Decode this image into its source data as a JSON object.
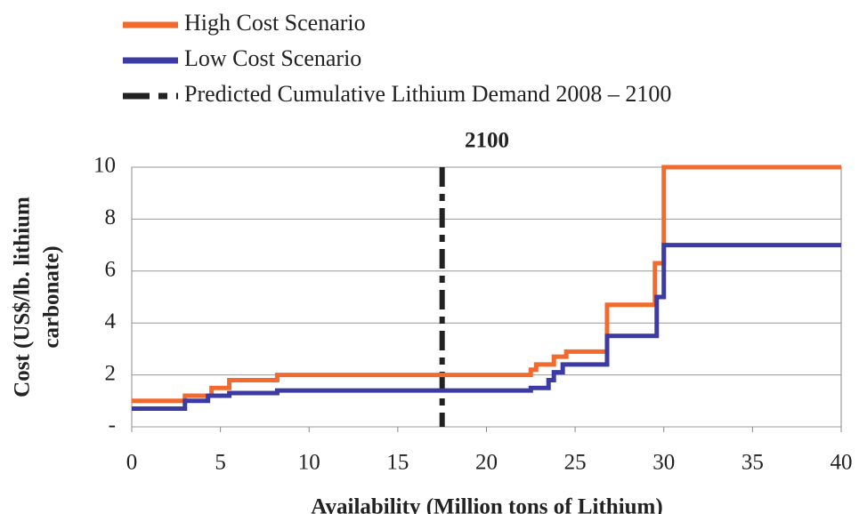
{
  "chart_data": {
    "type": "step",
    "title": "2100",
    "xlabel": "Availability (Million tons of Lithium)",
    "ylabel": [
      "Cost (US$/lb. lithium",
      "carbonate)"
    ],
    "xlim": [
      0,
      40
    ],
    "ylim": [
      0,
      10
    ],
    "xticks": [
      0,
      5,
      10,
      15,
      20,
      25,
      30,
      35,
      40
    ],
    "yticks": [
      {
        "value": 0,
        "label": "-"
      },
      2,
      4,
      6,
      8,
      10
    ],
    "grid": true,
    "series": [
      {
        "name": "High Cost Scenario",
        "color": "#f26a2e",
        "x": [
          0,
          3,
          4.5,
          5.5,
          8.2,
          22.5,
          22.8,
          23.8,
          24.5,
          26.8,
          29.5,
          29.8,
          30,
          40
        ],
        "values": [
          1.0,
          1.2,
          1.5,
          1.8,
          2.0,
          2.2,
          2.4,
          2.7,
          2.9,
          4.7,
          6.3,
          6.3,
          10,
          10
        ]
      },
      {
        "name": "Low Cost Scenario",
        "color": "#3b3ba3",
        "x": [
          0,
          3,
          4.3,
          5.5,
          8.2,
          22.5,
          23.5,
          23.8,
          24.3,
          26.8,
          29.6,
          30,
          40
        ],
        "values": [
          0.7,
          1.0,
          1.2,
          1.3,
          1.4,
          1.5,
          1.8,
          2.1,
          2.4,
          3.5,
          5.0,
          7.0,
          7.0
        ]
      }
    ],
    "demand": {
      "name": "Predicted Cumulative Lithium Demand 2008 – 2100",
      "x": 17.5,
      "color": "#222"
    }
  }
}
